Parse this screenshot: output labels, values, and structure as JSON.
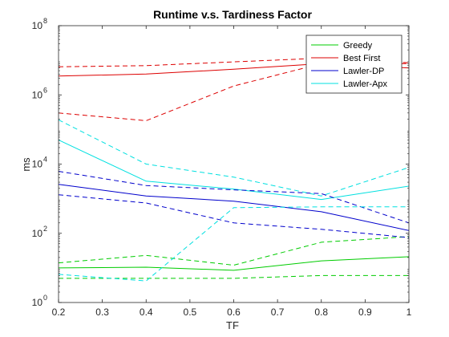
{
  "chart_data": {
    "type": "line",
    "title": "Runtime v.s. Tardiness Factor",
    "xlabel": "TF",
    "ylabel": "ms",
    "xlim": [
      0.2,
      1
    ],
    "ylim": [
      1,
      100000000
    ],
    "yscale": "log",
    "grid": false,
    "legend_position": "top-right",
    "x_ticks": [
      "0.2",
      "0.3",
      "0.4",
      "0.5",
      "0.6",
      "0.7",
      "0.8",
      "0.9",
      "1"
    ],
    "y_ticks": [
      {
        "base": "10",
        "exp": "0"
      },
      {
        "base": "10",
        "exp": "2"
      },
      {
        "base": "10",
        "exp": "4"
      },
      {
        "base": "10",
        "exp": "6"
      },
      {
        "base": "10",
        "exp": "8"
      }
    ],
    "x": [
      0.2,
      0.4,
      0.6,
      0.8,
      1.0
    ],
    "series": [
      {
        "name": "Greedy",
        "color": "#00cc00",
        "style": "solid",
        "values": [
          10,
          10.5,
          8.5,
          16,
          21
        ]
      },
      {
        "name": "Best First",
        "color": "#dd0000",
        "style": "solid",
        "values": [
          3500000,
          4000000,
          5500000,
          8000000,
          6000000
        ]
      },
      {
        "name": "Lawler-DP",
        "color": "#0000cc",
        "style": "solid",
        "values": [
          2600,
          1200,
          850,
          420,
          120
        ]
      },
      {
        "name": "Lawler-Apx",
        "color": "#00e0e0",
        "style": "solid",
        "values": [
          50000,
          3200,
          1900,
          950,
          2300
        ]
      },
      {
        "color": "#00cc00",
        "style": "dashed",
        "values": [
          14,
          23,
          12,
          55,
          80
        ]
      },
      {
        "color": "#00cc00",
        "style": "dashed",
        "values": [
          5,
          5,
          5,
          6,
          6
        ]
      },
      {
        "color": "#dd0000",
        "style": "dashed",
        "values": [
          6500000,
          7000000,
          9000000,
          11500000,
          8500000
        ]
      },
      {
        "color": "#dd0000",
        "style": "dashed",
        "values": [
          300000,
          180000,
          1800000,
          8000000,
          8000000
        ]
      },
      {
        "color": "#0000cc",
        "style": "dashed",
        "values": [
          6200,
          2400,
          1800,
          1400,
          200
        ]
      },
      {
        "color": "#0000cc",
        "style": "dashed",
        "values": [
          1300,
          750,
          200,
          130,
          75
        ]
      },
      {
        "color": "#00e0e0",
        "style": "dashed",
        "values": [
          190000,
          10000,
          4200,
          1200,
          8000
        ]
      },
      {
        "color": "#00e0e0",
        "style": "dashed",
        "values": [
          6.5,
          4.2,
          550,
          580,
          580
        ]
      }
    ]
  }
}
